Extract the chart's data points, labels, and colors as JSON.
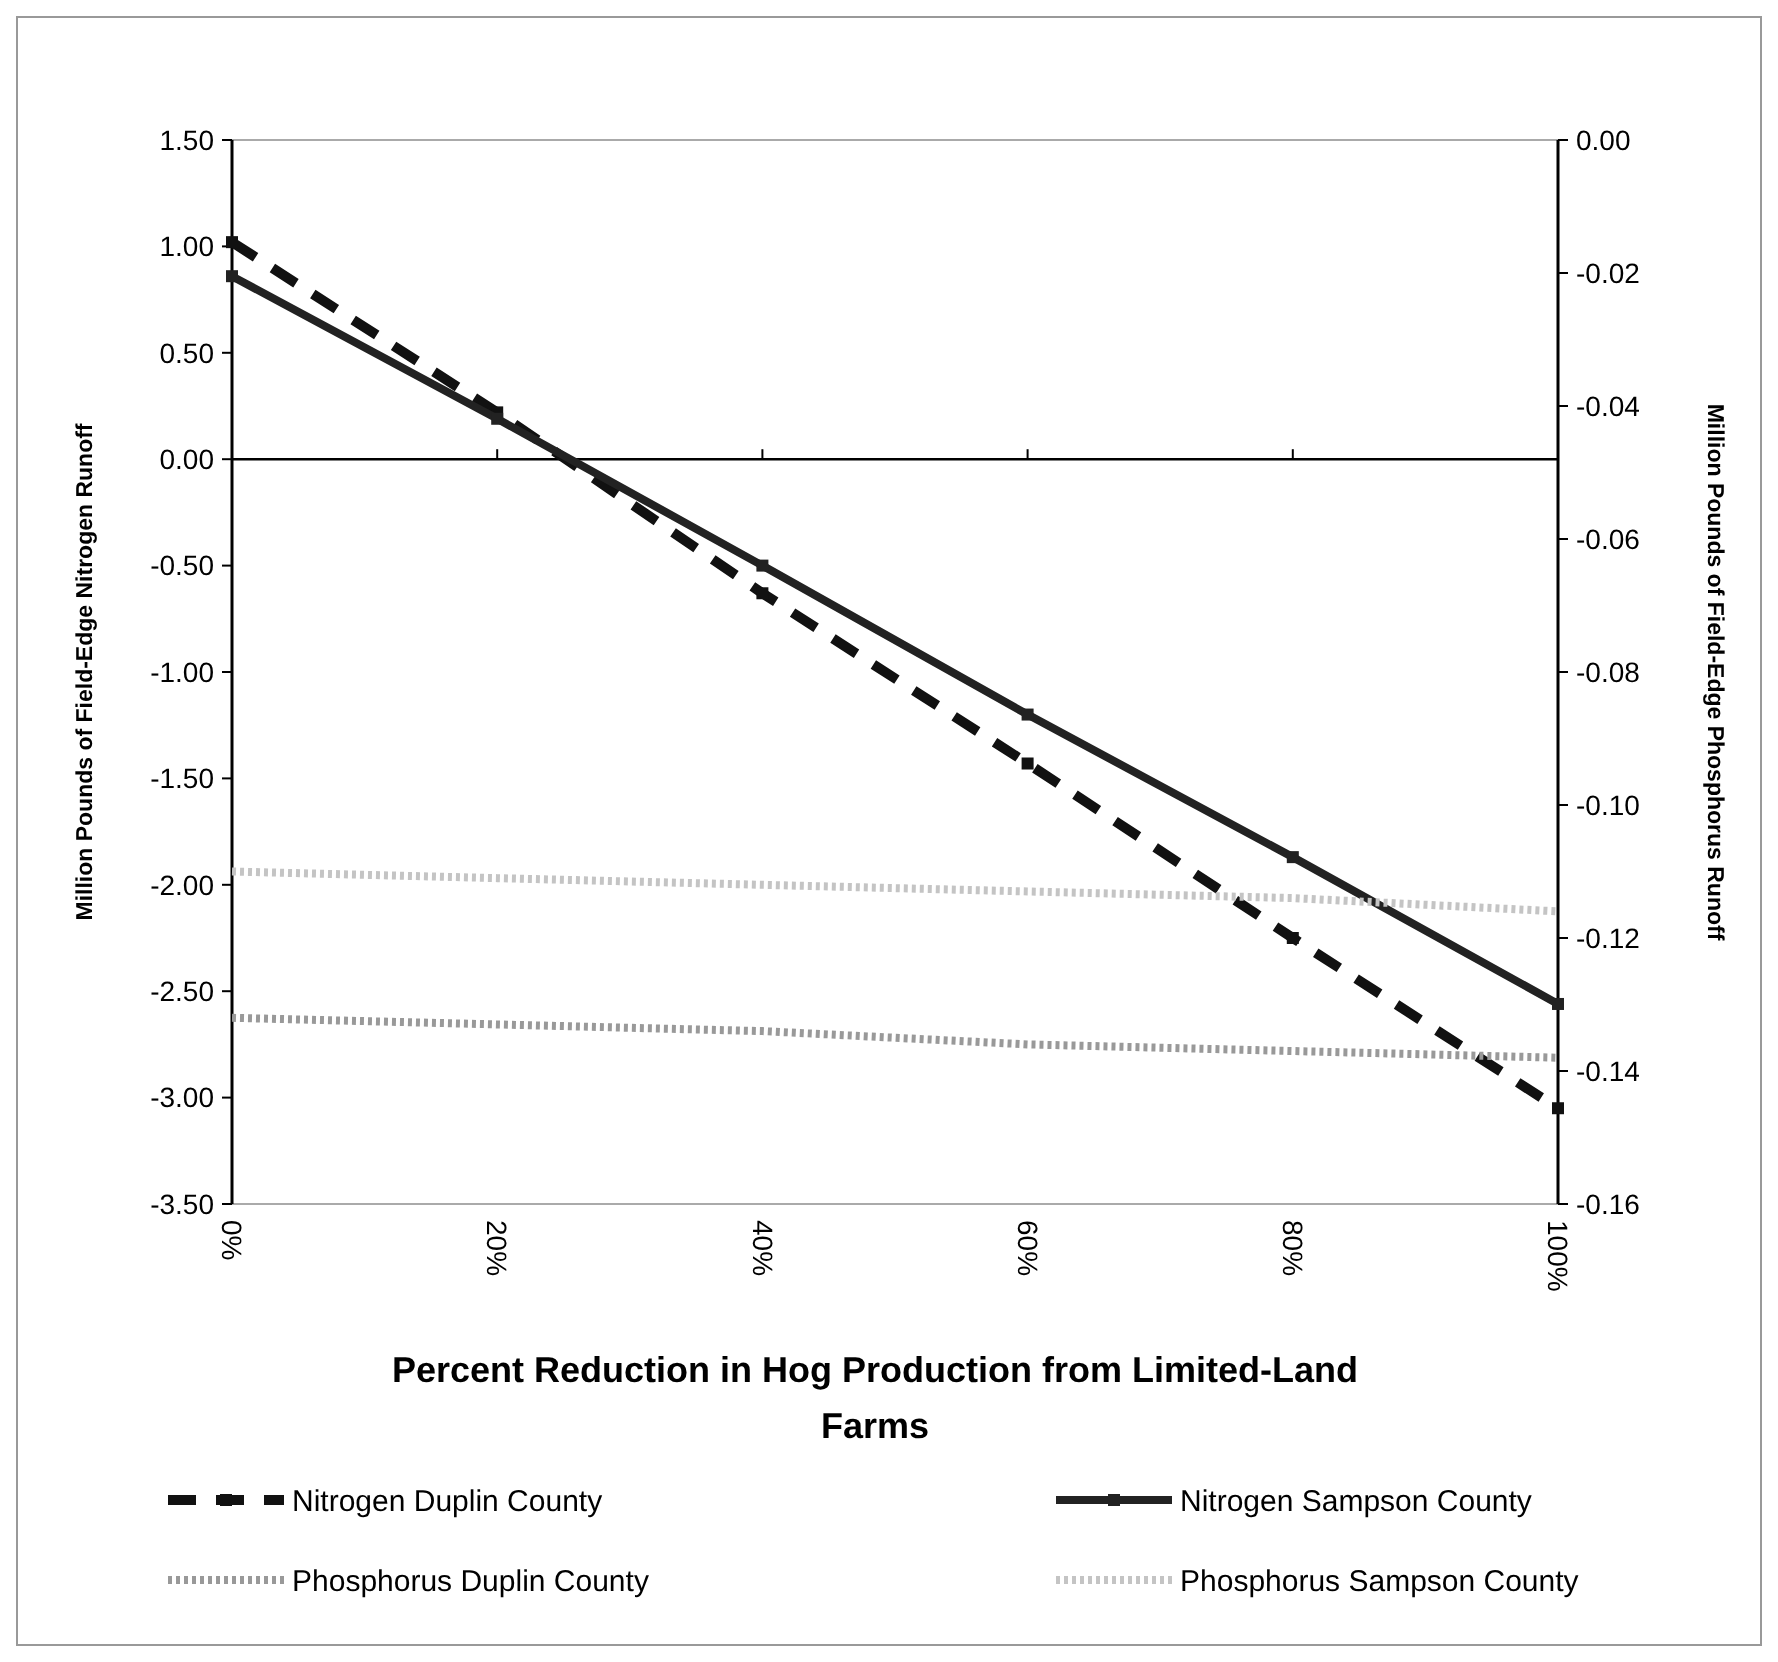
{
  "chart_data": {
    "type": "line",
    "xlabel": "Percent Reduction in Hog Production from Limited-Land Farms",
    "ylabel": "Million Pounds of Field-Edge Nitrogen Runoff",
    "y2label": "Million Pounds of Field-Edge Phosphorus Runoff",
    "x": [
      0,
      20,
      40,
      60,
      80,
      100
    ],
    "xlim": [
      0,
      100
    ],
    "xticks": [
      {
        "value": 0,
        "label": "0%"
      },
      {
        "value": 20,
        "label": "20%"
      },
      {
        "value": 40,
        "label": "40%"
      },
      {
        "value": 60,
        "label": "60%"
      },
      {
        "value": 80,
        "label": "80%"
      },
      {
        "value": 100,
        "label": "100%"
      }
    ],
    "ylim": [
      -3.5,
      1.5
    ],
    "yticks": [
      {
        "value": 1.5,
        "label": "1.50"
      },
      {
        "value": 1,
        "label": "1.00"
      },
      {
        "value": 0.5,
        "label": "0.50"
      },
      {
        "value": 0,
        "label": "0.00"
      },
      {
        "value": -0.5,
        "label": "-0.50"
      },
      {
        "value": -1,
        "label": "-1.00"
      },
      {
        "value": -1.5,
        "label": "-1.50"
      },
      {
        "value": -2,
        "label": "-2.00"
      },
      {
        "value": -2.5,
        "label": "-2.50"
      },
      {
        "value": -3,
        "label": "-3.00"
      },
      {
        "value": -3.5,
        "label": "-3.50"
      }
    ],
    "y2lim": [
      -0.16,
      0
    ],
    "y2ticks": [
      {
        "value": 0,
        "label": "0.00"
      },
      {
        "value": -0.02,
        "label": "-0.02"
      },
      {
        "value": -0.04,
        "label": "-0.04"
      },
      {
        "value": -0.06,
        "label": "-0.06"
      },
      {
        "value": -0.08,
        "label": "-0.08"
      },
      {
        "value": -0.1,
        "label": "-0.10"
      },
      {
        "value": -0.12,
        "label": "-0.12"
      },
      {
        "value": -0.14,
        "label": "-0.14"
      },
      {
        "value": -0.16,
        "label": "-0.16"
      }
    ],
    "legend": "bottom",
    "series": [
      {
        "name": "Nitrogen Duplin County",
        "color": "#111111",
        "line_style": "dashed",
        "marker": "square",
        "values": [
          1.02,
          0.22,
          -0.63,
          -1.43,
          -2.25,
          -3.05
        ]
      },
      {
        "name": "Nitrogen Sampson County",
        "color": "#222222",
        "line_style": "solid",
        "marker": "square",
        "values": [
          0.86,
          0.19,
          -0.5,
          -1.2,
          -1.87,
          -2.56
        ]
      },
      {
        "name": "Phosphorus Duplin County",
        "color": "#999999",
        "line_style": "dotted",
        "marker": "none",
        "axis": "y2",
        "values": [
          -0.132,
          -0.133,
          -0.134,
          -0.136,
          -0.137,
          -0.138
        ]
      },
      {
        "name": "Phosphorus Sampson County",
        "color": "#c4c4c4",
        "line_style": "dotted",
        "marker": "none",
        "axis": "y2",
        "values": [
          -0.11,
          -0.111,
          -0.112,
          -0.113,
          -0.114,
          -0.116
        ]
      }
    ]
  }
}
